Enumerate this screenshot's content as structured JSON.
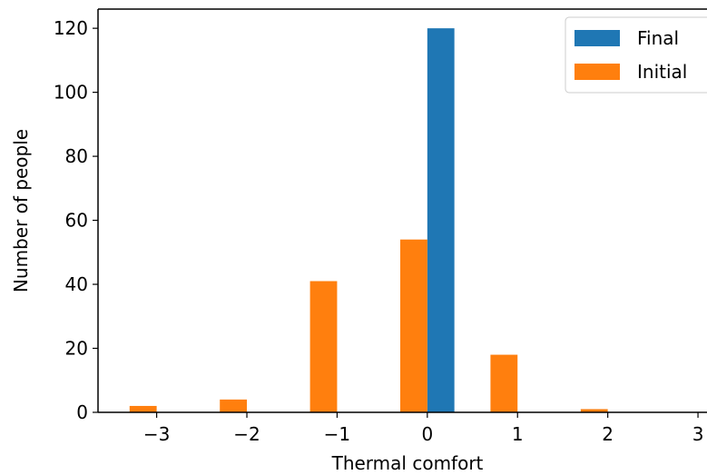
{
  "chart_data": {
    "type": "bar",
    "x": [
      -3,
      -2,
      -1,
      0,
      1,
      2,
      3
    ],
    "x_tick_labels": [
      "−3",
      "−2",
      "−1",
      "0",
      "1",
      "2",
      "3"
    ],
    "y_ticks": [
      0,
      20,
      40,
      60,
      80,
      100,
      120
    ],
    "series": [
      {
        "name": "Final",
        "color": "#1f77b4",
        "values": [
          0,
          0,
          0,
          120,
          0,
          0,
          0
        ]
      },
      {
        "name": "Initial",
        "color": "#ff7f0e",
        "values": [
          2,
          4,
          41,
          54,
          18,
          1,
          0
        ]
      }
    ],
    "xlabel": "Thermal comfort",
    "ylabel": "Number of people",
    "ylim": [
      0,
      126
    ],
    "xlim": [
      -3.65,
      3.1
    ],
    "legend_position": "top-right",
    "grid": false
  }
}
